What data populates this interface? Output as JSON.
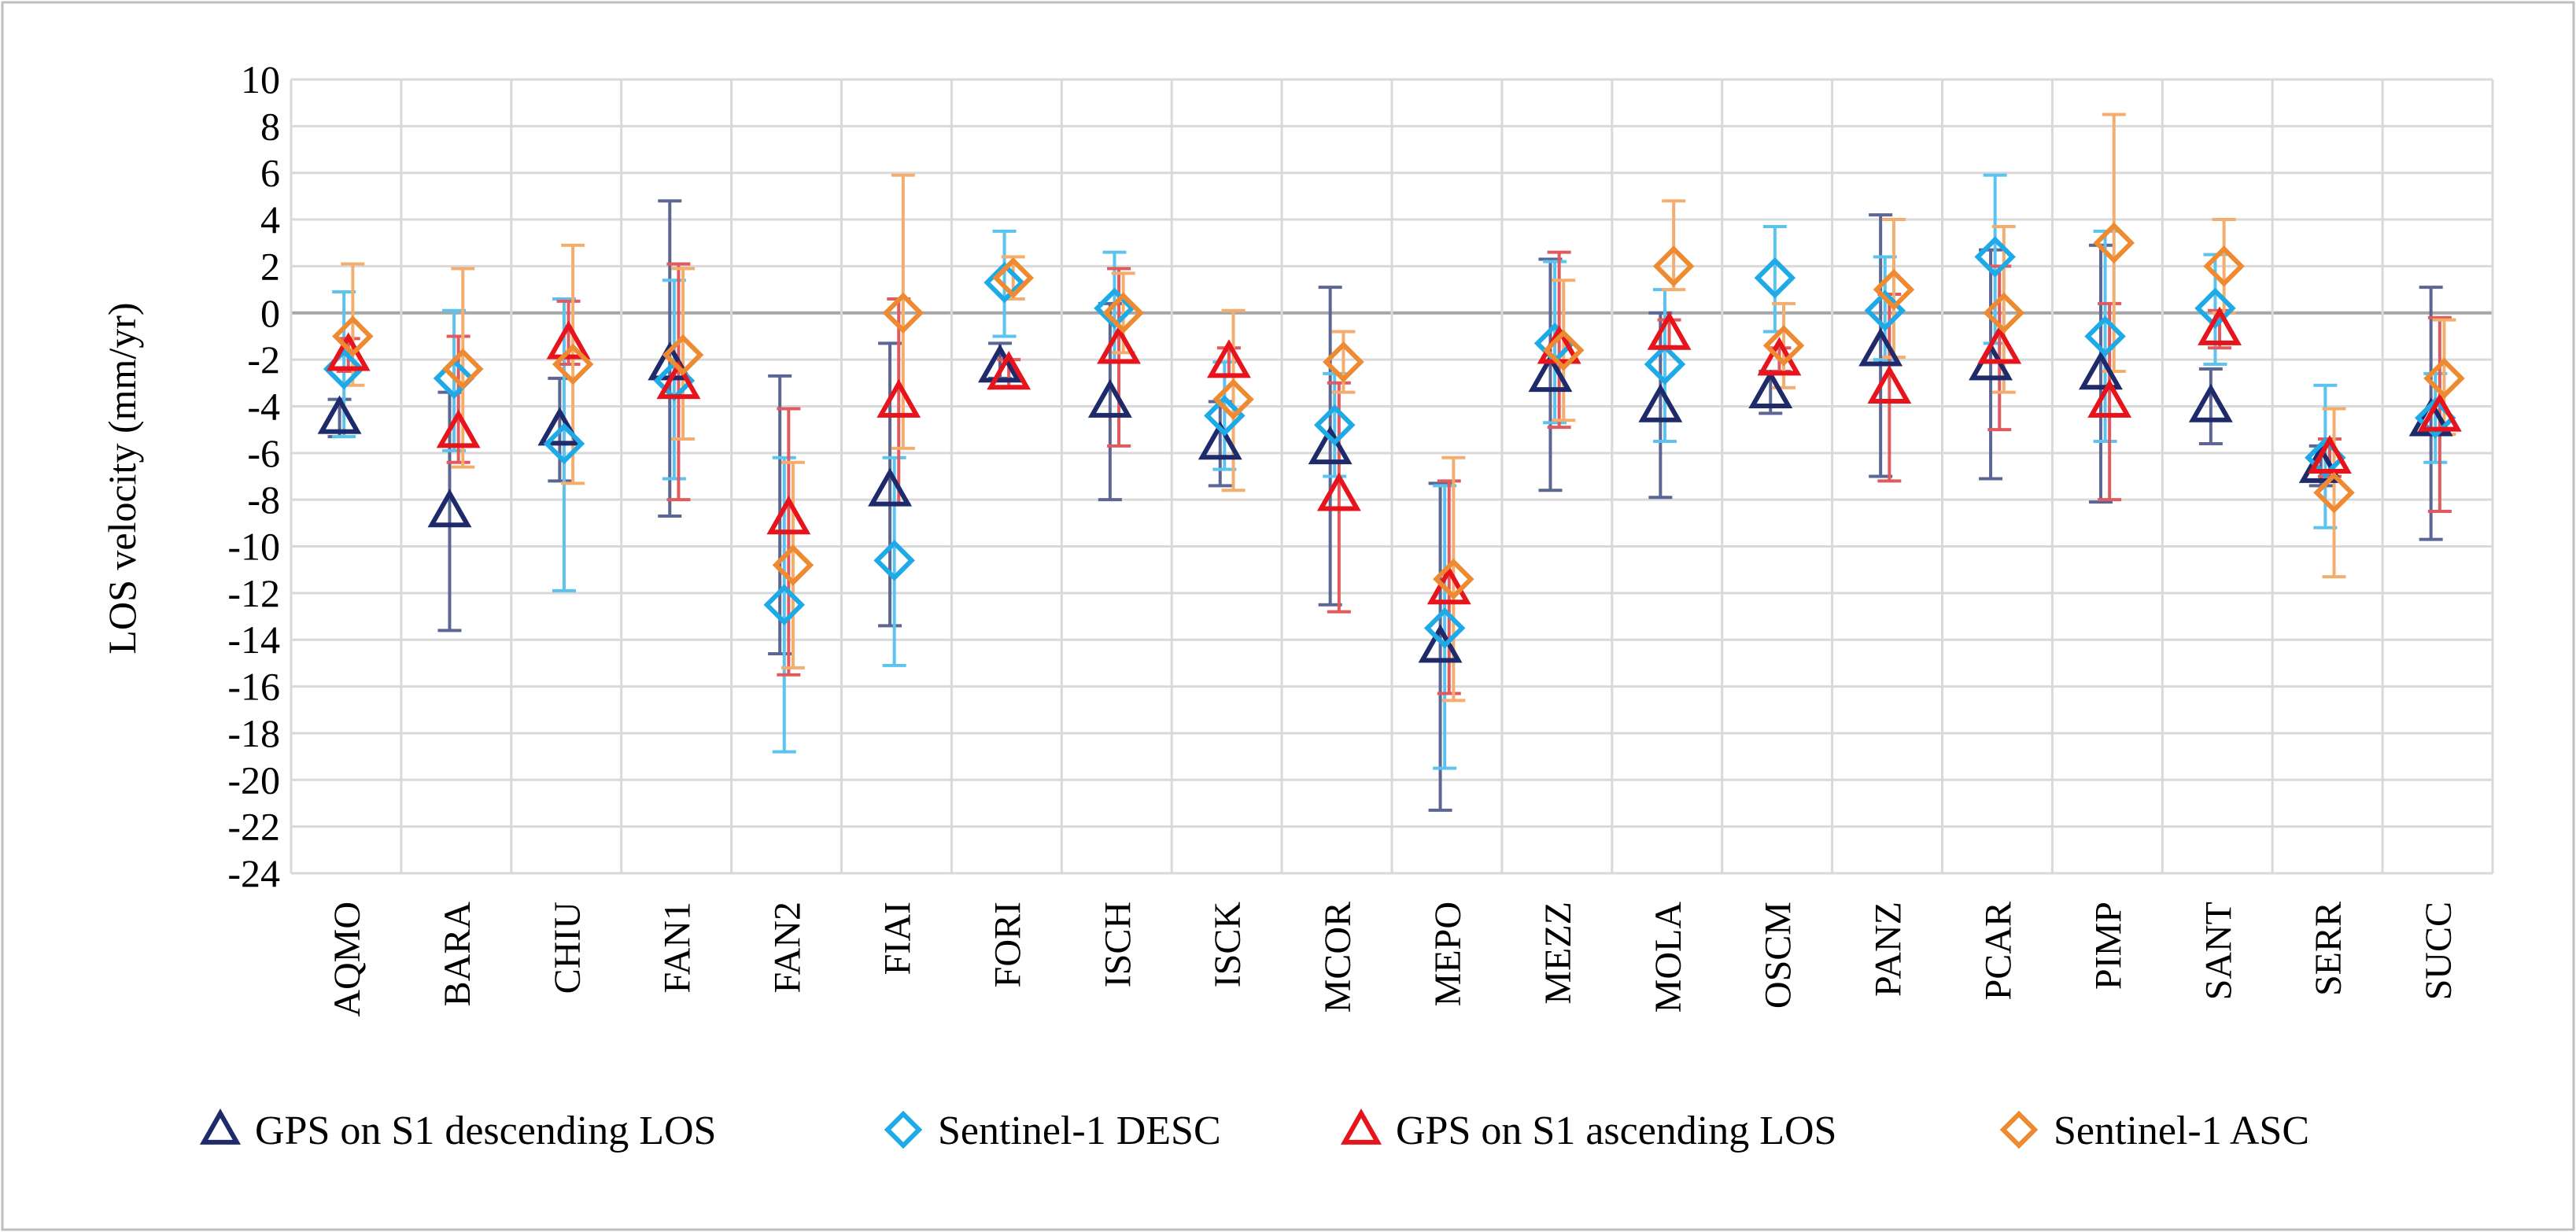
{
  "chart_data": {
    "type": "scatter",
    "title": "",
    "xlabel": "",
    "ylabel": "LOS velocity (mm/yr)",
    "ylim": [
      -24,
      10
    ],
    "ytick_step": 2,
    "yticks": [
      "10",
      "8",
      "6",
      "4",
      "2",
      "0",
      "-2",
      "-4",
      "-6",
      "-8",
      "-10",
      "-12",
      "-14",
      "-16",
      "-18",
      "-20",
      "-22",
      "-24"
    ],
    "grid": true,
    "legend_position": "bottom",
    "categories": [
      "AQMO",
      "BARA",
      "CHIU",
      "FAN1",
      "FAN2",
      "FIAI",
      "FORI",
      "ISCH",
      "ISCK",
      "MCOR",
      "MEPO",
      "MEZZ",
      "MOLA",
      "OSCM",
      "PANZ",
      "PCAR",
      "PIMP",
      "SANT",
      "SERR",
      "SUCC"
    ],
    "series": [
      {
        "name": "GPS on S1 descending LOS",
        "marker": "triangle",
        "color": "#1F2A6B",
        "errcolor": "#5B6694",
        "offset": -0.06,
        "values": [
          -4.5,
          -8.5,
          -5.0,
          -2.2,
          null,
          -7.6,
          -2.3,
          -3.8,
          -5.6,
          -5.8,
          -14.3,
          -2.7,
          -4.0,
          -3.4,
          -1.6,
          -2.2,
          -2.6,
          -4.0,
          -6.6,
          -4.6
        ],
        "lower": [
          -5.3,
          -13.6,
          -7.2,
          -8.7,
          -14.6,
          -13.4,
          -2.8,
          -8.0,
          -7.4,
          -12.5,
          -21.3,
          -7.6,
          -7.9,
          -4.3,
          -7.0,
          -7.1,
          -8.1,
          -5.6,
          -7.4,
          -9.7
        ],
        "upper": [
          -3.7,
          -3.4,
          -2.8,
          4.8,
          -2.7,
          -1.3,
          -1.3,
          0.4,
          -3.8,
          1.1,
          -7.3,
          2.3,
          0.0,
          -2.5,
          4.2,
          2.7,
          2.9,
          -2.4,
          -5.7,
          1.1
        ]
      },
      {
        "name": "Sentinel-1 DESC",
        "marker": "diamond",
        "color": "#1EAAE6",
        "errcolor": "#5CC3EE",
        "offset": -0.02,
        "values": [
          -2.4,
          -2.8,
          -5.6,
          -2.9,
          -12.5,
          -10.6,
          1.3,
          0.2,
          -4.4,
          -4.8,
          -13.5,
          -1.3,
          -2.2,
          1.5,
          0.1,
          2.4,
          -1.0,
          0.2,
          -6.2,
          -4.5
        ],
        "lower": [
          -5.3,
          -5.9,
          -11.9,
          -7.1,
          -18.8,
          -15.1,
          -1.0,
          -2.1,
          -6.7,
          -7.0,
          -19.5,
          -4.7,
          -5.5,
          -0.8,
          -2.0,
          -1.3,
          -5.5,
          -2.2,
          -9.2,
          -6.4
        ],
        "upper": [
          0.9,
          0.1,
          0.6,
          1.4,
          -6.2,
          -6.2,
          3.5,
          2.6,
          -2.1,
          -2.6,
          -7.4,
          2.2,
          1.0,
          3.7,
          2.4,
          5.9,
          3.5,
          2.5,
          -3.1,
          -2.6
        ]
      },
      {
        "name": "GPS on S1 ascending LOS",
        "marker": "triangle",
        "color": "#E8141C",
        "errcolor": "#E05A5E",
        "offset": 0.02,
        "values": [
          -1.8,
          -5.1,
          -1.3,
          -3.0,
          -8.8,
          -3.8,
          -2.6,
          -1.5,
          -2.1,
          -7.8,
          -11.8,
          -1.5,
          -0.9,
          -2.0,
          -3.2,
          -1.5,
          -3.8,
          -0.7,
          -6.2,
          -4.4
        ],
        "lower": [
          -2.5,
          -6.4,
          -2.2,
          -8.0,
          -15.5,
          -8.2,
          -3.2,
          -5.7,
          -2.7,
          -12.8,
          -16.3,
          -4.9,
          -1.5,
          -2.5,
          -7.2,
          -5.0,
          -8.0,
          -1.5,
          -7.0,
          -8.5
        ],
        "upper": [
          -1.1,
          -1.0,
          0.5,
          2.1,
          -4.1,
          0.6,
          -2.0,
          1.9,
          -1.5,
          -3.0,
          -7.2,
          2.6,
          -0.3,
          -1.5,
          0.8,
          2.0,
          0.4,
          0.1,
          -5.4,
          -0.2
        ]
      },
      {
        "name": "Sentinel-1 ASC",
        "marker": "diamond",
        "color": "#EE8A32",
        "errcolor": "#F3AE6F",
        "offset": 0.06,
        "values": [
          -1.0,
          -2.4,
          -2.2,
          -1.8,
          -10.8,
          0.0,
          1.5,
          0.0,
          -3.7,
          -2.1,
          -11.4,
          -1.6,
          2.0,
          -1.4,
          1.0,
          0.0,
          3.0,
          2.0,
          -7.7,
          -2.8
        ],
        "lower": [
          -3.1,
          -6.6,
          -7.3,
          -5.4,
          -15.2,
          -5.8,
          0.6,
          -1.7,
          -7.6,
          -3.4,
          -16.6,
          -4.6,
          1.0,
          -3.2,
          -1.9,
          -3.4,
          -2.5,
          0.0,
          -11.3,
          -5.2
        ],
        "upper": [
          2.1,
          1.9,
          2.9,
          1.9,
          -6.4,
          5.9,
          2.4,
          1.7,
          0.1,
          -0.8,
          -6.2,
          1.4,
          4.8,
          0.4,
          4.0,
          3.7,
          8.5,
          4.0,
          -4.1,
          -0.3
        ]
      }
    ]
  }
}
